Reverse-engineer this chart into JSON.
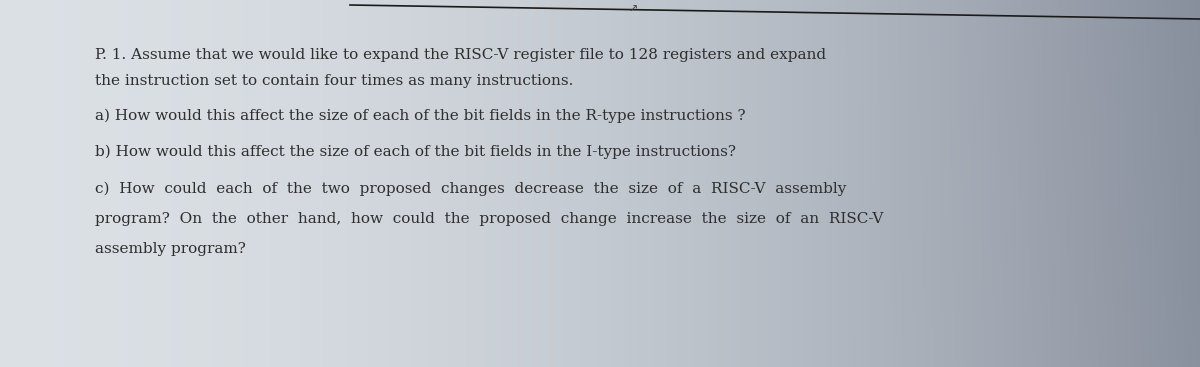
{
  "bg_left": "#d8dce0",
  "bg_right": "#8a9099",
  "line_top_color": "#2a2a2a",
  "text_color": "#2e2e2e",
  "title_line1": "P. 1. Assume that we would like to expand the RISC-V register file to 128 registers and expand",
  "title_line2": "the instruction set to contain four times as many instructions.",
  "line_a": "a) How would this affect the size of each of the bit fields in the R-type instructions ?",
  "line_b": "b) How would this affect the size of each of the bit fields in the I-type instructions?",
  "line_c1": "c)  How  could  each  of  the  two  proposed  changes  decrease  the  size  of  a  RISC-V  assembly",
  "line_c2": "program?  On  the  other  hand,  how  could  the  proposed  change  increase  the  size  of  an  RISC-V",
  "line_c3": "assembly program?",
  "figwidth": 12.0,
  "figheight": 3.67,
  "dpi": 100
}
